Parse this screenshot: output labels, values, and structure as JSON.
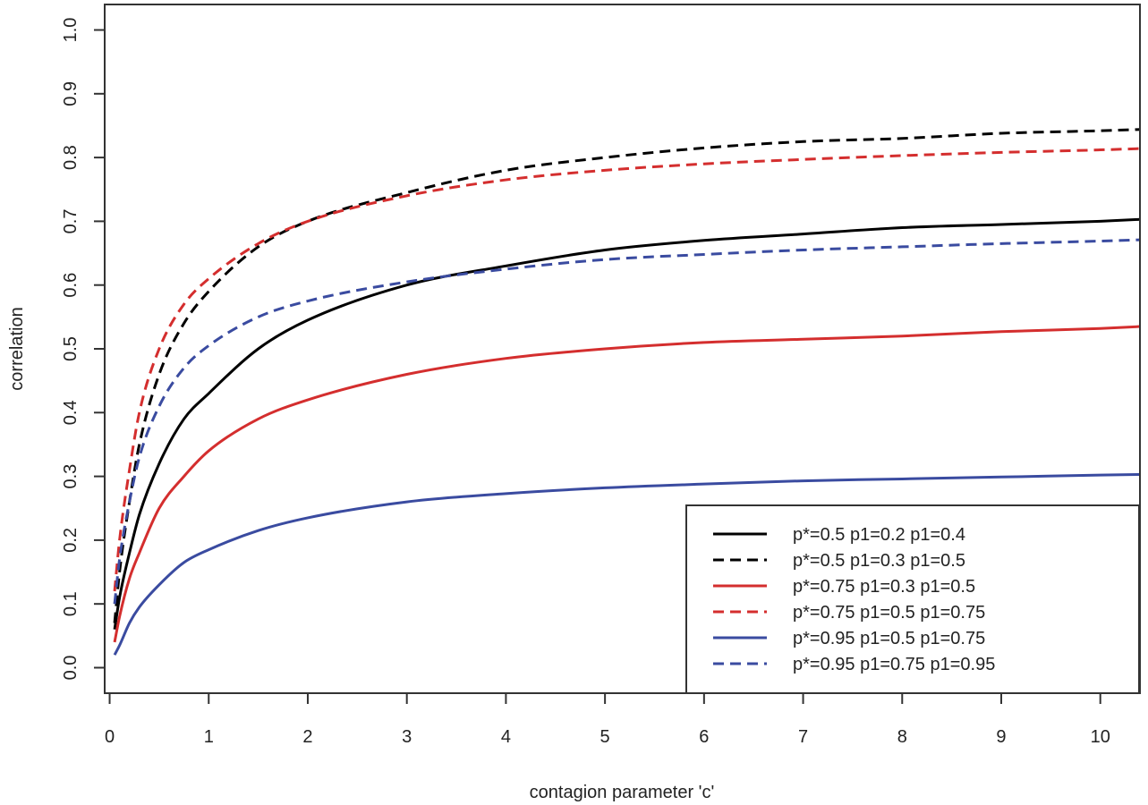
{
  "chart_data": {
    "type": "line",
    "xlabel": "contagion parameter 'c'",
    "ylabel": "correlation",
    "xlim": [
      -0.05,
      10.4
    ],
    "ylim": [
      -0.04,
      1.04
    ],
    "x_ticks": [
      0,
      1,
      2,
      3,
      4,
      5,
      6,
      7,
      8,
      9,
      10
    ],
    "y_ticks": [
      0.0,
      0.1,
      0.2,
      0.3,
      0.4,
      0.5,
      0.6,
      0.7,
      0.8,
      0.9,
      1.0
    ],
    "x_tick_labels": [
      "0",
      "1",
      "2",
      "3",
      "4",
      "5",
      "6",
      "7",
      "8",
      "9",
      "10"
    ],
    "y_tick_labels": [
      "0.0",
      "0.1",
      "0.2",
      "0.3",
      "0.4",
      "0.5",
      "0.6",
      "0.7",
      "0.8",
      "0.9",
      "1.0"
    ],
    "grid": false,
    "legend_position": "bottom-right",
    "x": [
      0.05,
      0.1,
      0.2,
      0.3,
      0.5,
      0.75,
      1,
      1.5,
      2,
      3,
      4,
      5,
      6,
      7,
      8,
      9,
      10,
      10.4
    ],
    "series": [
      {
        "name": "p*=0.5 p1=0.2 p1=0.4",
        "color": "#000000",
        "dash": "solid",
        "values": [
          0.06,
          0.11,
          0.18,
          0.24,
          0.32,
          0.39,
          0.43,
          0.5,
          0.545,
          0.6,
          0.63,
          0.655,
          0.67,
          0.68,
          0.69,
          0.695,
          0.7,
          0.703
        ]
      },
      {
        "name": "p*=0.5 p1=0.3 p1=0.5",
        "color": "#000000",
        "dash": "dashed",
        "values": [
          0.07,
          0.15,
          0.26,
          0.35,
          0.46,
          0.54,
          0.59,
          0.66,
          0.7,
          0.745,
          0.78,
          0.8,
          0.815,
          0.825,
          0.83,
          0.838,
          0.842,
          0.844
        ]
      },
      {
        "name": "p*=0.75 p1=0.3 p1=0.5",
        "color": "#d42e2e",
        "dash": "solid",
        "values": [
          0.04,
          0.08,
          0.14,
          0.18,
          0.25,
          0.3,
          0.34,
          0.39,
          0.42,
          0.46,
          0.485,
          0.5,
          0.51,
          0.515,
          0.52,
          0.527,
          0.532,
          0.535
        ]
      },
      {
        "name": "p*=0.75 p1=0.5 p1=0.75",
        "color": "#d42e2e",
        "dash": "dashed",
        "values": [
          0.12,
          0.2,
          0.31,
          0.4,
          0.5,
          0.57,
          0.61,
          0.665,
          0.7,
          0.74,
          0.765,
          0.78,
          0.79,
          0.797,
          0.803,
          0.808,
          0.812,
          0.814
        ]
      },
      {
        "name": "p*=0.95 p1=0.5 p1=0.75",
        "color": "#3a4ba0",
        "dash": "solid",
        "values": [
          0.02,
          0.035,
          0.07,
          0.095,
          0.13,
          0.165,
          0.185,
          0.215,
          0.235,
          0.26,
          0.273,
          0.282,
          0.288,
          0.293,
          0.296,
          0.299,
          0.302,
          0.303
        ]
      },
      {
        "name": "p*=0.95 p1=0.75 p1=0.95",
        "color": "#3a4ba0",
        "dash": "dashed",
        "values": [
          0.1,
          0.17,
          0.26,
          0.33,
          0.41,
          0.47,
          0.505,
          0.55,
          0.575,
          0.605,
          0.625,
          0.64,
          0.648,
          0.655,
          0.66,
          0.665,
          0.669,
          0.671
        ]
      }
    ]
  }
}
